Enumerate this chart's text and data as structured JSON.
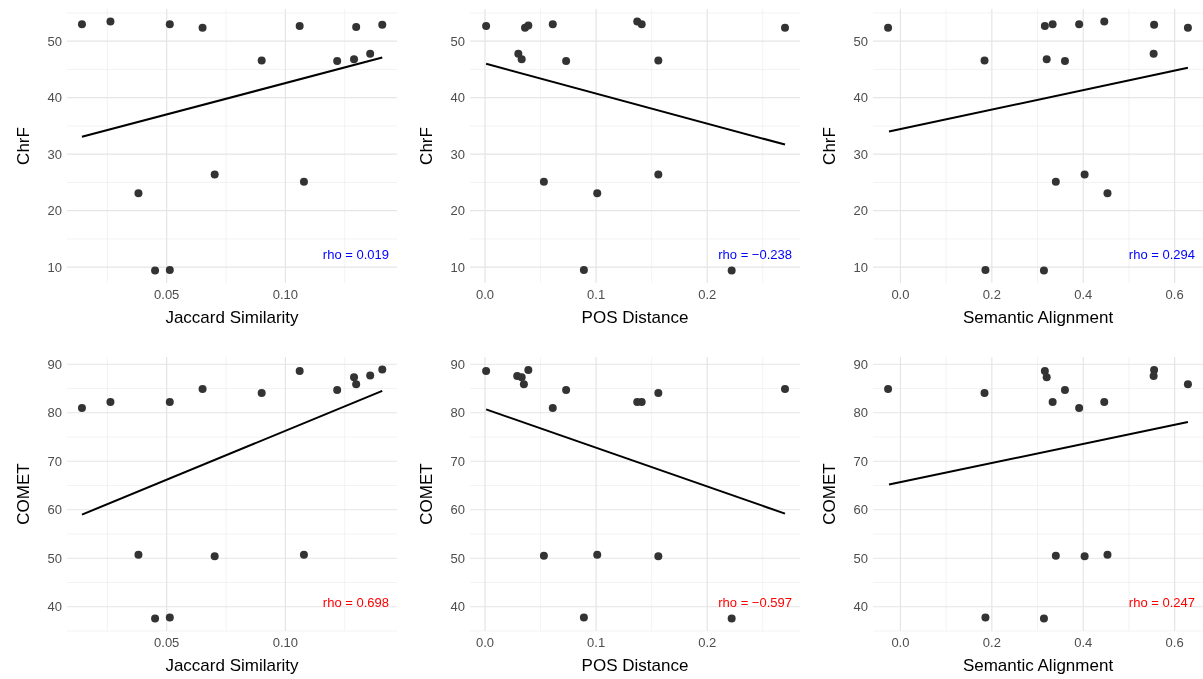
{
  "chart_data": [
    {
      "type": "scatter",
      "xlabel": "Jaccard Similarity",
      "ylabel": "ChrF",
      "xlim": [
        0.008,
        0.147
      ],
      "xticks": [
        {
          "value": 0.05,
          "label": "0.05"
        },
        {
          "value": 0.1,
          "label": "0.10"
        }
      ],
      "ylim": [
        7.2,
        55.7
      ],
      "yticks": [
        10,
        20,
        30,
        40,
        50
      ],
      "grid": true,
      "annotations": [
        "rho = 0.019"
      ],
      "series": [
        {
          "marker": "circle",
          "color": "#333333",
          "x": [
            0.0143,
            0.0263,
            0.0513,
            0.0651,
            0.106,
            0.1298,
            0.1408,
            0.09,
            0.1218,
            0.1289,
            0.1357,
            0.0381,
            0.0702,
            0.1078,
            0.0451,
            0.0513
          ],
          "values": [
            53.0,
            53.5,
            53.0,
            52.4,
            52.7,
            52.5,
            52.9,
            46.6,
            46.5,
            46.8,
            47.8,
            23.1,
            26.4,
            25.1,
            9.4,
            9.5
          ]
        },
        {
          "type": "line",
          "color": "#000000",
          "x": [
            0.0143,
            0.1408
          ],
          "values": [
            33.1,
            47.1
          ]
        }
      ]
    },
    {
      "type": "scatter",
      "xlabel": "POS Distance",
      "ylabel": "ChrF",
      "xlim": [
        -0.0135,
        0.2835
      ],
      "xticks": [
        {
          "value": 0,
          "label": "0.0"
        },
        {
          "value": 0.1,
          "label": "0.1"
        },
        {
          "value": 0.2,
          "label": "0.2"
        }
      ],
      "ylim": [
        7.2,
        55.7
      ],
      "yticks": [
        10,
        20,
        30,
        40,
        50
      ],
      "grid": true,
      "annotations": [
        "rho = −0.238"
      ],
      "series": [
        {
          "marker": "circle",
          "color": "#333333",
          "x": [
            0.001,
            0.03,
            0.033,
            0.036,
            0.039,
            0.061,
            0.073,
            0.053,
            0.101,
            0.089,
            0.137,
            0.141,
            0.156,
            0.156,
            0.222,
            0.27
          ],
          "values": [
            52.7,
            47.8,
            46.8,
            52.4,
            52.8,
            53.0,
            46.5,
            25.1,
            23.1,
            9.5,
            53.5,
            53.0,
            46.6,
            26.4,
            9.4,
            52.4
          ]
        },
        {
          "type": "line",
          "color": "#000000",
          "x": [
            0.001,
            0.27
          ],
          "values": [
            46.0,
            31.7
          ]
        }
      ]
    },
    {
      "type": "scatter",
      "xlabel": "Semantic Alignment",
      "ylabel": "ChrF",
      "xlim": [
        -0.06,
        0.662
      ],
      "xticks": [
        {
          "value": 0,
          "label": "0.0"
        },
        {
          "value": 0.2,
          "label": "0.2"
        },
        {
          "value": 0.4,
          "label": "0.4"
        },
        {
          "value": 0.6,
          "label": "0.6"
        }
      ],
      "ylim": [
        7.2,
        55.7
      ],
      "yticks": [
        10,
        20,
        30,
        40,
        50
      ],
      "grid": true,
      "annotations": [
        "rho = 0.294"
      ],
      "series": [
        {
          "marker": "circle",
          "color": "#333333",
          "x": [
            -0.027,
            0.184,
            0.186,
            0.314,
            0.316,
            0.32,
            0.333,
            0.34,
            0.36,
            0.391,
            0.403,
            0.446,
            0.453,
            0.555,
            0.554,
            0.629
          ],
          "values": [
            52.4,
            46.6,
            9.5,
            9.4,
            52.7,
            46.8,
            53.0,
            25.1,
            46.5,
            53.0,
            26.4,
            53.5,
            23.1,
            52.9,
            47.8,
            52.4
          ]
        },
        {
          "type": "line",
          "color": "#000000",
          "x": [
            -0.025,
            0.629
          ],
          "values": [
            34.0,
            45.3
          ]
        }
      ]
    },
    {
      "type": "scatter",
      "xlabel": "Jaccard Similarity",
      "ylabel": "COMET",
      "xlim": [
        0.008,
        0.147
      ],
      "xticks": [
        {
          "value": 0.05,
          "label": "0.05"
        },
        {
          "value": 0.1,
          "label": "0.10"
        }
      ],
      "ylim": [
        35.0,
        91.5
      ],
      "yticks": [
        40,
        50,
        60,
        70,
        80,
        90
      ],
      "grid": true,
      "annotations": [
        "rho = 0.698"
      ],
      "series": [
        {
          "marker": "circle",
          "color": "#333333",
          "x": [
            0.0143,
            0.0263,
            0.0513,
            0.0651,
            0.09,
            0.106,
            0.1218,
            0.1289,
            0.1298,
            0.1357,
            0.1408,
            0.0381,
            0.0702,
            0.1078,
            0.0451,
            0.0513
          ],
          "values": [
            81.0,
            82.2,
            82.2,
            84.9,
            84.1,
            88.6,
            84.7,
            87.3,
            85.9,
            87.7,
            88.9,
            50.7,
            50.4,
            50.7,
            37.6,
            37.8
          ]
        },
        {
          "type": "line",
          "color": "#000000",
          "x": [
            0.0143,
            0.1408
          ],
          "values": [
            59.0,
            84.5
          ]
        }
      ]
    },
    {
      "type": "scatter",
      "xlabel": "POS Distance",
      "ylabel": "COMET",
      "xlim": [
        -0.0135,
        0.2835
      ],
      "xticks": [
        {
          "value": 0,
          "label": "0.0"
        },
        {
          "value": 0.1,
          "label": "0.1"
        },
        {
          "value": 0.2,
          "label": "0.2"
        }
      ],
      "ylim": [
        35.0,
        91.5
      ],
      "yticks": [
        40,
        50,
        60,
        70,
        80,
        90
      ],
      "grid": true,
      "annotations": [
        "rho = −0.597"
      ],
      "series": [
        {
          "marker": "circle",
          "color": "#333333",
          "x": [
            0.001,
            0.029,
            0.033,
            0.035,
            0.039,
            0.061,
            0.073,
            0.053,
            0.101,
            0.089,
            0.137,
            0.141,
            0.156,
            0.156,
            0.222,
            0.27
          ],
          "values": [
            88.6,
            87.6,
            87.3,
            85.9,
            88.8,
            81.0,
            84.7,
            50.5,
            50.7,
            37.8,
            82.2,
            82.2,
            84.1,
            50.4,
            37.6,
            84.9
          ]
        },
        {
          "type": "line",
          "color": "#000000",
          "x": [
            0.001,
            0.27
          ],
          "values": [
            80.7,
            59.2
          ]
        }
      ]
    },
    {
      "type": "scatter",
      "xlabel": "Semantic Alignment",
      "ylabel": "COMET",
      "xlim": [
        -0.06,
        0.662
      ],
      "xticks": [
        {
          "value": 0,
          "label": "0.0"
        },
        {
          "value": 0.2,
          "label": "0.2"
        },
        {
          "value": 0.4,
          "label": "0.4"
        },
        {
          "value": 0.6,
          "label": "0.6"
        }
      ],
      "ylim": [
        35.0,
        91.5
      ],
      "yticks": [
        40,
        50,
        60,
        70,
        80,
        90
      ],
      "grid": true,
      "annotations": [
        "rho = 0.247"
      ],
      "series": [
        {
          "marker": "circle",
          "color": "#333333",
          "x": [
            -0.027,
            0.184,
            0.186,
            0.314,
            0.316,
            0.32,
            0.333,
            0.34,
            0.36,
            0.391,
            0.403,
            0.446,
            0.453,
            0.555,
            0.554,
            0.629
          ],
          "values": [
            84.9,
            84.1,
            37.8,
            37.6,
            88.6,
            87.3,
            82.2,
            50.5,
            84.7,
            81.0,
            50.4,
            82.2,
            50.7,
            88.8,
            87.6,
            85.9
          ]
        },
        {
          "type": "line",
          "color": "#000000",
          "x": [
            -0.025,
            0.629
          ],
          "values": [
            65.2,
            78.1
          ]
        }
      ]
    }
  ]
}
